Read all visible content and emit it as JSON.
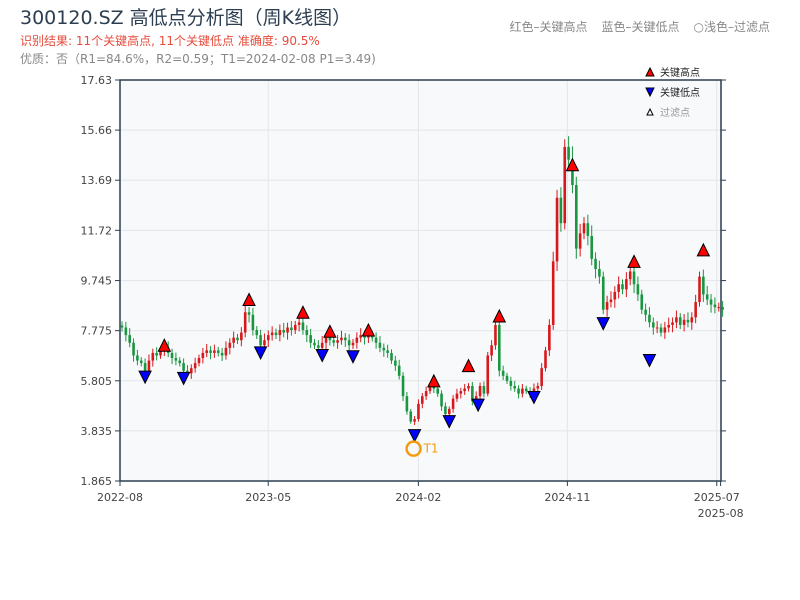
{
  "header": {
    "title": "300120.SZ 高低点分析图（周K线图）",
    "result": "识别结果: 11个关键高点, 11个关键低点  准确度: 90.5%",
    "quality": "优质：否（R1=84.6%，R2=0.59；T1=2024-02-08 P1=3.49)",
    "legend_red": "红色–关键高点",
    "legend_blue": "蓝色–关键低点",
    "legend_filtered": "○浅色–过滤点"
  },
  "chart_data": {
    "type": "candlestick",
    "ylim": [
      1.865,
      17.63
    ],
    "yticks": [
      "17.63",
      "15.66",
      "13.69",
      "11.72",
      "9.745",
      "7.775",
      "5.805",
      "3.835",
      "1.865"
    ],
    "ytick_values": [
      17.63,
      15.66,
      13.69,
      11.72,
      9.745,
      7.775,
      5.805,
      3.835,
      1.865
    ],
    "xticks": [
      {
        "label": "2022-08",
        "week": 0
      },
      {
        "label": "2023-05",
        "week": 38.5
      },
      {
        "label": "2024-02",
        "week": 77.5
      },
      {
        "label": "2024-11",
        "week": 116.2
      },
      {
        "label": "2025-07",
        "week": 155
      },
      {
        "label": "2025-08",
        "week": 156
      }
    ],
    "closes": [
      7.9,
      7.6,
      7.3,
      6.8,
      6.6,
      6.5,
      6.2,
      6.6,
      6.9,
      6.8,
      7.0,
      7.1,
      6.9,
      6.7,
      6.6,
      6.5,
      6.2,
      6.1,
      6.3,
      6.5,
      6.7,
      6.9,
      7.0,
      6.9,
      7.0,
      6.9,
      6.8,
      7.1,
      7.3,
      7.5,
      7.4,
      7.7,
      8.5,
      8.4,
      7.8,
      7.6,
      7.2,
      7.4,
      7.6,
      7.7,
      7.6,
      7.8,
      7.7,
      7.9,
      7.8,
      8.0,
      8.1,
      7.8,
      7.6,
      7.3,
      7.2,
      7.1,
      7.3,
      7.5,
      7.4,
      7.3,
      7.4,
      7.5,
      7.4,
      7.2,
      7.3,
      7.5,
      7.6,
      7.5,
      7.6,
      7.5,
      7.3,
      7.1,
      7.0,
      6.9,
      6.6,
      6.4,
      6.0,
      5.2,
      4.6,
      4.2,
      4.3,
      4.9,
      5.2,
      5.4,
      5.6,
      5.5,
      5.3,
      4.8,
      4.5,
      4.7,
      5.1,
      5.3,
      5.4,
      5.5,
      5.6,
      5.0,
      5.2,
      5.6,
      5.3,
      6.8,
      7.2,
      8.0,
      6.2,
      6.0,
      5.8,
      5.6,
      5.5,
      5.3,
      5.5,
      5.4,
      5.3,
      5.5,
      5.6,
      6.3,
      7.0,
      8.0,
      10.5,
      13.0,
      12.0,
      15.0,
      14.5,
      13.5,
      11.0,
      11.6,
      12.0,
      11.5,
      10.6,
      10.2,
      9.9,
      8.6,
      8.9,
      9.0,
      9.3,
      9.6,
      9.4,
      9.8,
      10.1,
      9.6,
      9.2,
      8.6,
      8.4,
      8.1,
      7.9,
      7.9,
      7.7,
      7.9,
      8.0,
      8.1,
      8.3,
      8.0,
      8.2,
      8.1,
      8.3,
      8.9,
      9.9,
      9.2,
      9.0,
      8.8,
      8.7,
      8.7,
      8.6
    ],
    "key_highs": [
      [
        11,
        7.2
      ],
      [
        33,
        9.0
      ],
      [
        47,
        8.5
      ],
      [
        54,
        7.75
      ],
      [
        64,
        7.8
      ],
      [
        81,
        5.8
      ],
      [
        90,
        6.4
      ],
      [
        98,
        8.35
      ],
      [
        117,
        14.3
      ],
      [
        133,
        10.5
      ],
      [
        151,
        10.95
      ]
    ],
    "key_lows": [
      [
        6,
        5.95
      ],
      [
        16,
        5.9
      ],
      [
        36,
        6.9
      ],
      [
        52,
        6.8
      ],
      [
        60,
        6.75
      ],
      [
        76,
        3.65
      ],
      [
        85,
        4.2
      ],
      [
        92.5,
        4.85
      ],
      [
        107,
        5.15
      ],
      [
        125,
        8.05
      ],
      [
        137,
        6.6
      ]
    ],
    "t1": {
      "label": "T1",
      "week": 76,
      "price": 3.49
    },
    "legend": [
      "关键高点",
      "关键低点",
      "过滤点"
    ],
    "colors": {
      "up": "#d7191c",
      "down": "#1a9641",
      "high": "#ff0000",
      "low": "#0000ff"
    }
  }
}
